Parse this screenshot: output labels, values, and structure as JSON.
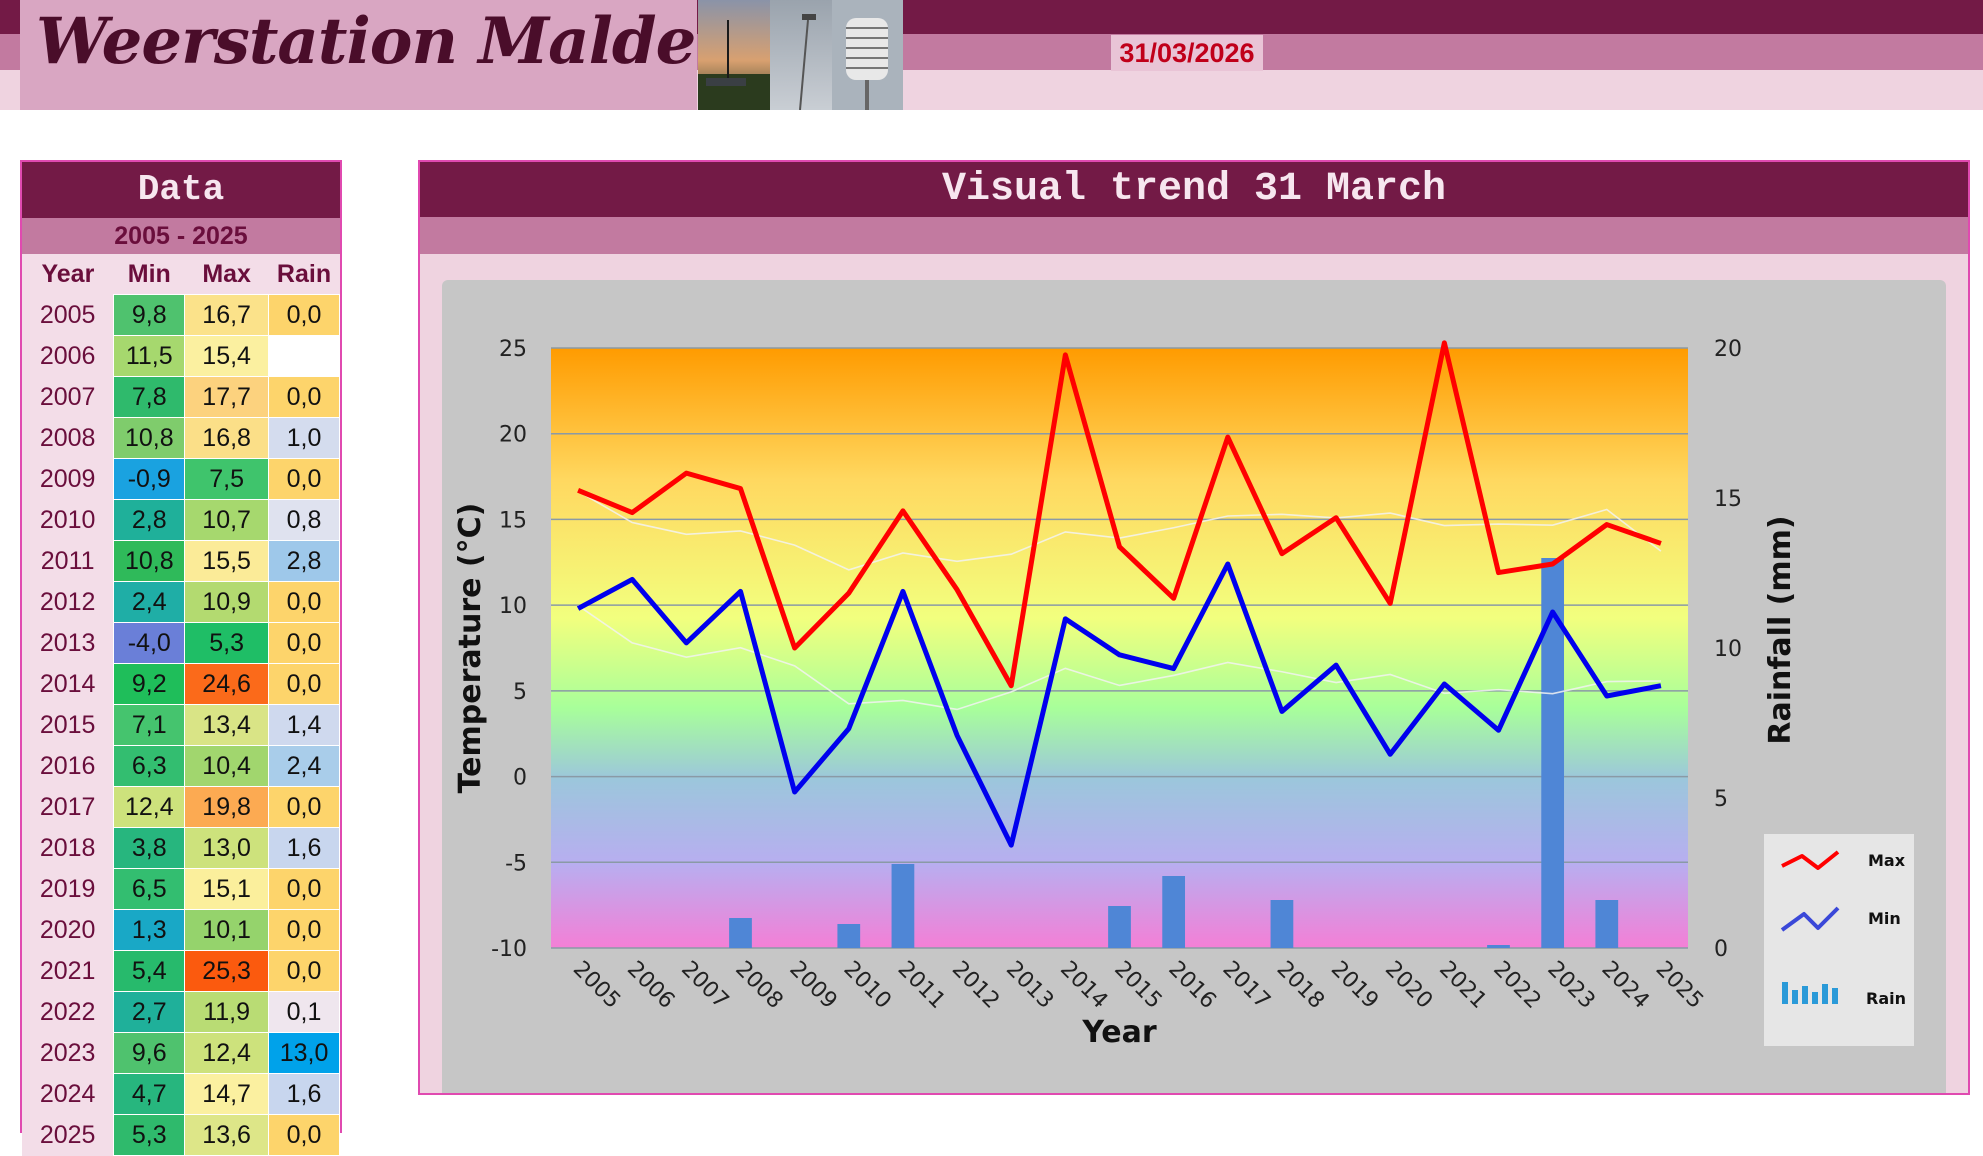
{
  "header": {
    "site_title": "Weerstation Malderen",
    "date": "31/03/2026"
  },
  "colors": {
    "header_dark": "#731a46",
    "header_mid": "#c27aa0",
    "header_light": "#efd3e0",
    "max_line": "#ff0000",
    "min_line": "#0000ee",
    "rain_bar": "#4f86d6",
    "date_text": "#c0001a"
  },
  "data_table": {
    "title": "Data",
    "range": "2005 - 2025",
    "headers": [
      "Year",
      "Min",
      "Max",
      "Rain"
    ],
    "rows": [
      {
        "year": "2005",
        "min": "9,8",
        "max": "16,7",
        "rain": "0,0",
        "min_color": "#4fc26e",
        "max_color": "#fbe28a",
        "rain_color": "#fdd46b"
      },
      {
        "year": "2006",
        "min": "11,5",
        "max": "15,4",
        "rain": "",
        "min_color": "#a6d86e",
        "max_color": "#fbf0a0",
        "rain_color": "#ffffff"
      },
      {
        "year": "2007",
        "min": "7,8",
        "max": "17,7",
        "rain": "0,0",
        "min_color": "#2fba6c",
        "max_color": "#fcd27e",
        "rain_color": "#fdd46b"
      },
      {
        "year": "2008",
        "min": "10,8",
        "max": "16,8",
        "rain": "1,0",
        "min_color": "#7fcc6c",
        "max_color": "#fbdf88",
        "rain_color": "#d4dcee"
      },
      {
        "year": "2009",
        "min": "-0,9",
        "max": "7,5",
        "rain": "0,0",
        "min_color": "#1aa2e0",
        "max_color": "#3fc46c",
        "rain_color": "#fdd46b"
      },
      {
        "year": "2010",
        "min": "2,8",
        "max": "10,7",
        "rain": "0,8",
        "min_color": "#1fb09a",
        "max_color": "#a6d86e",
        "rain_color": "#dfe2ef"
      },
      {
        "year": "2011",
        "min": "10,8",
        "max": "15,5",
        "rain": "2,8",
        "min_color": "#2fba5a",
        "max_color": "#fbeb98",
        "rain_color": "#9ec8ea"
      },
      {
        "year": "2012",
        "min": "2,4",
        "max": "10,9",
        "rain": "0,0",
        "min_color": "#1faea6",
        "max_color": "#b3da70",
        "rain_color": "#fdd46b"
      },
      {
        "year": "2013",
        "min": "-4,0",
        "max": "5,3",
        "rain": "0,0",
        "min_color": "#6a7fd8",
        "max_color": "#1fbe66",
        "rain_color": "#fdd46b"
      },
      {
        "year": "2014",
        "min": "9,2",
        "max": "24,6",
        "rain": "0,0",
        "min_color": "#1fbe5a",
        "max_color": "#fb6a1a",
        "rain_color": "#fdd46b"
      },
      {
        "year": "2015",
        "min": "7,1",
        "max": "13,4",
        "rain": "1,4",
        "min_color": "#45c46e",
        "max_color": "#d9e486",
        "rain_color": "#cfd9ee"
      },
      {
        "year": "2016",
        "min": "6,3",
        "max": "10,4",
        "rain": "2,4",
        "min_color": "#33be70",
        "max_color": "#a1d66e",
        "rain_color": "#a9cdea"
      },
      {
        "year": "2017",
        "min": "12,4",
        "max": "19,8",
        "rain": "0,0",
        "min_color": "#cde27c",
        "max_color": "#fcaa52",
        "rain_color": "#fdd46b"
      },
      {
        "year": "2018",
        "min": "3,8",
        "max": "13,0",
        "rain": "1,6",
        "min_color": "#27b67e",
        "max_color": "#cde27c",
        "rain_color": "#c8d6ee"
      },
      {
        "year": "2019",
        "min": "6,5",
        "max": "15,1",
        "rain": "0,0",
        "min_color": "#33be70",
        "max_color": "#fbef9c",
        "rain_color": "#fdd46b"
      },
      {
        "year": "2020",
        "min": "1,3",
        "max": "10,1",
        "rain": "0,0",
        "min_color": "#19a8c6",
        "max_color": "#95d36c",
        "rain_color": "#fdd46b"
      },
      {
        "year": "2021",
        "min": "5,4",
        "max": "25,3",
        "rain": "0,0",
        "min_color": "#27ba6c",
        "max_color": "#fb5a0e",
        "rain_color": "#fdd46b"
      },
      {
        "year": "2022",
        "min": "2,7",
        "max": "11,9",
        "rain": "0,1",
        "min_color": "#1fb09a",
        "max_color": "#b9dc74",
        "rain_color": "#efe6ee"
      },
      {
        "year": "2023",
        "min": "9,6",
        "max": "12,4",
        "rain": "13,0",
        "min_color": "#4fc26e",
        "max_color": "#cde27c",
        "rain_color": "#00a2ea"
      },
      {
        "year": "2024",
        "min": "4,7",
        "max": "14,7",
        "rain": "1,6",
        "min_color": "#27b67e",
        "max_color": "#fbf0a0",
        "rain_color": "#c8d6ee"
      },
      {
        "year": "2025",
        "min": "5,3",
        "max": "13,6",
        "rain": "0,0",
        "min_color": "#2fba6c",
        "max_color": "#dde688",
        "rain_color": "#fdd46b"
      }
    ]
  },
  "chart_panel": {
    "title": "Visual trend 31 March"
  },
  "chart_data": {
    "type": "line",
    "title": "",
    "xlabel": "Year",
    "ylabel": "Temperature (°C)",
    "y2label": "Rainfall (mm)",
    "ylim": [
      -10,
      25
    ],
    "y2lim": [
      0,
      20
    ],
    "yticks": [
      25,
      20,
      15,
      10,
      5,
      0,
      -5,
      -10
    ],
    "y2ticks": [
      20,
      15,
      10,
      5,
      0
    ],
    "grid": true,
    "legend_position": "right",
    "categories": [
      "2005",
      "2006",
      "2007",
      "2008",
      "2009",
      "2010",
      "2011",
      "2012",
      "2013",
      "2014",
      "2015",
      "2016",
      "2017",
      "2018",
      "2019",
      "2020",
      "2021",
      "2022",
      "2023",
      "2024",
      "2025"
    ],
    "series": [
      {
        "name": "Max",
        "axis": "left",
        "kind": "line",
        "color": "#ff0000",
        "values": [
          16.7,
          15.4,
          17.7,
          16.8,
          7.5,
          10.7,
          15.5,
          10.9,
          5.3,
          24.6,
          13.4,
          10.4,
          19.8,
          13.0,
          15.1,
          10.1,
          25.3,
          11.9,
          12.4,
          14.7,
          13.6
        ]
      },
      {
        "name": "Min",
        "axis": "left",
        "kind": "line",
        "color": "#0000ee",
        "values": [
          9.8,
          11.5,
          7.8,
          10.8,
          -0.9,
          2.8,
          10.8,
          2.4,
          -4.0,
          9.2,
          7.1,
          6.3,
          12.4,
          3.8,
          6.5,
          1.3,
          5.4,
          2.7,
          9.6,
          4.7,
          5.3
        ]
      },
      {
        "name": "Rain",
        "axis": "right",
        "kind": "bar",
        "color": "#4f86d6",
        "values": [
          0.0,
          null,
          0.0,
          1.0,
          0.0,
          0.8,
          2.8,
          0.0,
          0.0,
          0.0,
          1.4,
          2.4,
          0.0,
          1.6,
          0.0,
          0.0,
          0.0,
          0.1,
          13.0,
          1.6,
          0.0
        ]
      }
    ]
  }
}
